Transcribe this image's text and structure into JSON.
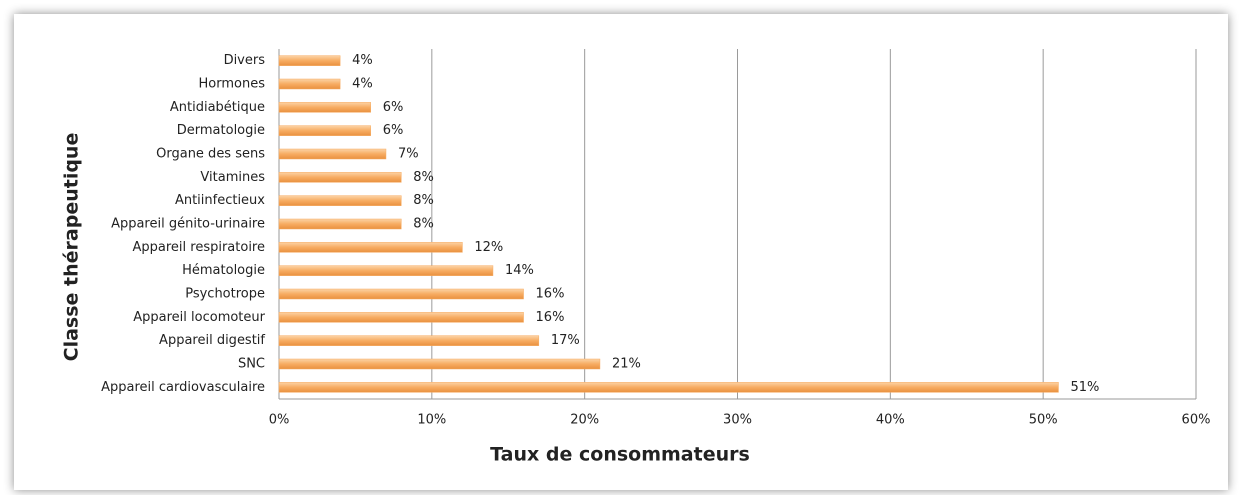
{
  "chart_data": {
    "type": "barh",
    "categories": [
      "Divers",
      "Hormones",
      "Antidiabétique",
      "Dermatologie",
      "Organe des sens",
      "Vitamines",
      "Antiinfectieux",
      "Appareil génito-urinaire",
      "Appareil respiratoire",
      "Hématologie",
      "Psychotrope",
      "Appareil locomoteur",
      "Appareil digestif",
      "SNC",
      "Appareil cardiovasculaire"
    ],
    "values": [
      4,
      4,
      6,
      6,
      7,
      8,
      8,
      8,
      12,
      14,
      16,
      16,
      17,
      21,
      51
    ],
    "value_labels": [
      "4%",
      "4%",
      "6%",
      "6%",
      "7%",
      "8%",
      "8%",
      "8%",
      "12%",
      "14%",
      "16%",
      "16%",
      "17%",
      "21%",
      "51%"
    ],
    "color": "#f7ac62",
    "xlim": [
      0,
      60
    ],
    "xticks": [
      {
        "value": 0,
        "label": "0%"
      },
      {
        "value": 10,
        "label": "10%"
      },
      {
        "value": 20,
        "label": "20%"
      },
      {
        "value": 30,
        "label": "30%"
      },
      {
        "value": 40,
        "label": "40%"
      },
      {
        "value": 50,
        "label": "50%"
      },
      {
        "value": 60,
        "label": "60%"
      }
    ],
    "grid": true,
    "xlabel": "Taux de consommateurs",
    "ylabel": "Classe thérapeutique"
  }
}
